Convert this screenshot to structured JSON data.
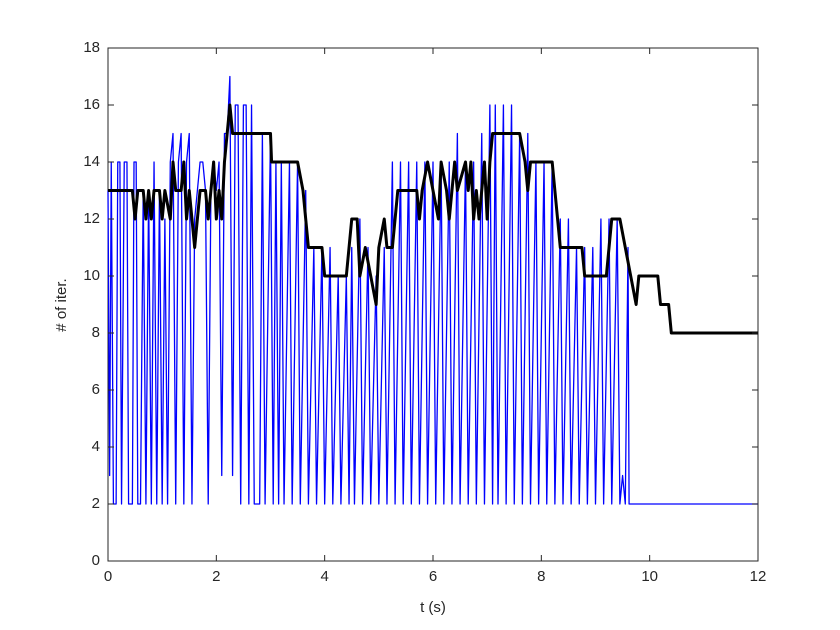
{
  "chart_data": {
    "type": "line",
    "x_label": "t (s)",
    "y_label": "# of iter.",
    "xlim": [
      0,
      12
    ],
    "ylim": [
      0,
      18
    ],
    "xticks": [
      0,
      2,
      4,
      6,
      8,
      10,
      12
    ],
    "yticks": [
      0,
      2,
      4,
      6,
      8,
      10,
      12,
      14,
      16,
      18
    ],
    "grid": false,
    "series": [
      {
        "color": "#0000ff",
        "width": 1.3,
        "x": [
          0,
          0.03,
          0.06,
          0.1,
          0.15,
          0.18,
          0.22,
          0.25,
          0.3,
          0.35,
          0.38,
          0.45,
          0.48,
          0.52,
          0.55,
          0.6,
          0.65,
          0.7,
          0.75,
          0.8,
          0.85,
          0.9,
          0.95,
          1.0,
          1.05,
          1.1,
          1.15,
          1.2,
          1.25,
          1.3,
          1.35,
          1.4,
          1.45,
          1.5,
          1.55,
          1.6,
          1.65,
          1.7,
          1.75,
          1.8,
          1.85,
          1.9,
          1.95,
          2.0,
          2.05,
          2.1,
          2.15,
          2.2,
          2.25,
          2.3,
          2.35,
          2.4,
          2.45,
          2.5,
          2.55,
          2.6,
          2.65,
          2.7,
          2.8,
          2.85,
          2.9,
          3.0,
          3.05,
          3.1,
          3.15,
          3.2,
          3.25,
          3.35,
          3.4,
          3.5,
          3.55,
          3.65,
          3.7,
          3.8,
          3.85,
          3.95,
          4.0,
          4.1,
          4.15,
          4.25,
          4.3,
          4.4,
          4.45,
          4.5,
          4.55,
          4.65,
          4.7,
          4.8,
          4.85,
          4.95,
          5.0,
          5.1,
          5.15,
          5.25,
          5.3,
          5.4,
          5.45,
          5.55,
          5.6,
          5.7,
          5.75,
          5.85,
          5.9,
          6.0,
          6.05,
          6.15,
          6.2,
          6.3,
          6.35,
          6.45,
          6.5,
          6.6,
          6.65,
          6.75,
          6.8,
          6.9,
          6.95,
          7.05,
          7.1,
          7.15,
          7.2,
          7.3,
          7.35,
          7.45,
          7.5,
          7.6,
          7.65,
          7.75,
          7.8,
          7.9,
          7.95,
          8.05,
          8.1,
          8.2,
          8.25,
          8.35,
          8.4,
          8.5,
          8.55,
          8.65,
          8.7,
          8.8,
          8.85,
          8.95,
          9.0,
          9.1,
          9.15,
          9.25,
          9.3,
          9.4,
          9.45,
          9.5,
          9.55,
          9.6,
          9.62,
          12
        ],
        "values": [
          13,
          3,
          14,
          2,
          2,
          14,
          14,
          2,
          14,
          14,
          2,
          2,
          14,
          14,
          2,
          2,
          13,
          2,
          13,
          2,
          14,
          2,
          13,
          2,
          12,
          2,
          14,
          15,
          2,
          14,
          15,
          2,
          14,
          15,
          2,
          12,
          13,
          14,
          14,
          13,
          2,
          13,
          14,
          13,
          14,
          3,
          15,
          15,
          17,
          3,
          16,
          16,
          2,
          16,
          16,
          2,
          16,
          2,
          2,
          15,
          2,
          15,
          2,
          14,
          2,
          14,
          2,
          14,
          2,
          14,
          2,
          13,
          2,
          11,
          2,
          11,
          2,
          11,
          2,
          10,
          2,
          10,
          2,
          11,
          2,
          12,
          2,
          11,
          2,
          10,
          2,
          11,
          2,
          14,
          2,
          14,
          2,
          14,
          2,
          14,
          2,
          14,
          2,
          14,
          2,
          14,
          2,
          14,
          2,
          15,
          2,
          14,
          2,
          14,
          2,
          15,
          2,
          16,
          2,
          16,
          2,
          16,
          2,
          16,
          2,
          15,
          2,
          15,
          2,
          14,
          2,
          14,
          2,
          14,
          2,
          12,
          2,
          12,
          2,
          11,
          2,
          11,
          2,
          11,
          2,
          12,
          2,
          12,
          2,
          12,
          2,
          3,
          2,
          11,
          2,
          2
        ]
      },
      {
        "color": "#000000",
        "width": 3,
        "x": [
          0,
          0.45,
          0.5,
          0.55,
          0.65,
          0.7,
          0.75,
          0.8,
          0.85,
          0.95,
          1.0,
          1.05,
          1.15,
          1.2,
          1.25,
          1.35,
          1.4,
          1.45,
          1.5,
          1.55,
          1.6,
          1.65,
          1.7,
          1.8,
          1.85,
          1.9,
          1.95,
          2.0,
          2.05,
          2.1,
          2.15,
          2.2,
          2.25,
          2.3,
          3.0,
          3.02,
          3.5,
          3.6,
          3.7,
          3.95,
          4.0,
          4.4,
          4.5,
          4.6,
          4.65,
          4.75,
          4.85,
          4.95,
          5.0,
          5.1,
          5.15,
          5.25,
          5.35,
          5.7,
          5.75,
          5.8,
          5.9,
          6.0,
          6.1,
          6.15,
          6.25,
          6.3,
          6.4,
          6.45,
          6.6,
          6.65,
          6.7,
          6.75,
          6.8,
          6.85,
          6.9,
          6.95,
          7.0,
          7.05,
          7.1,
          7.6,
          7.7,
          7.75,
          7.8,
          8.2,
          8.3,
          8.35,
          8.75,
          8.8,
          9.2,
          9.3,
          9.45,
          9.55,
          9.65,
          9.75,
          9.8,
          10.15,
          10.2,
          10.35,
          10.4,
          12
        ],
        "values": [
          13,
          13,
          12,
          13,
          13,
          12,
          13,
          12,
          13,
          13,
          12,
          13,
          12,
          14,
          13,
          13,
          14,
          12,
          13,
          12,
          11,
          12,
          13,
          13,
          12,
          13,
          14,
          12,
          13,
          12,
          14,
          15,
          16,
          15,
          15,
          14,
          14,
          13,
          11,
          11,
          10,
          10,
          12,
          12,
          10,
          11,
          10,
          9,
          11,
          12,
          11,
          11,
          13,
          13,
          12,
          13,
          14,
          13,
          12,
          14,
          13,
          12,
          14,
          13,
          14,
          13,
          14,
          12,
          13,
          12,
          13,
          14,
          12,
          14,
          15,
          15,
          14,
          13,
          14,
          14,
          12,
          11,
          11,
          10,
          10,
          12,
          12,
          11,
          10,
          9,
          10,
          10,
          9,
          9,
          8,
          8
        ]
      }
    ]
  }
}
